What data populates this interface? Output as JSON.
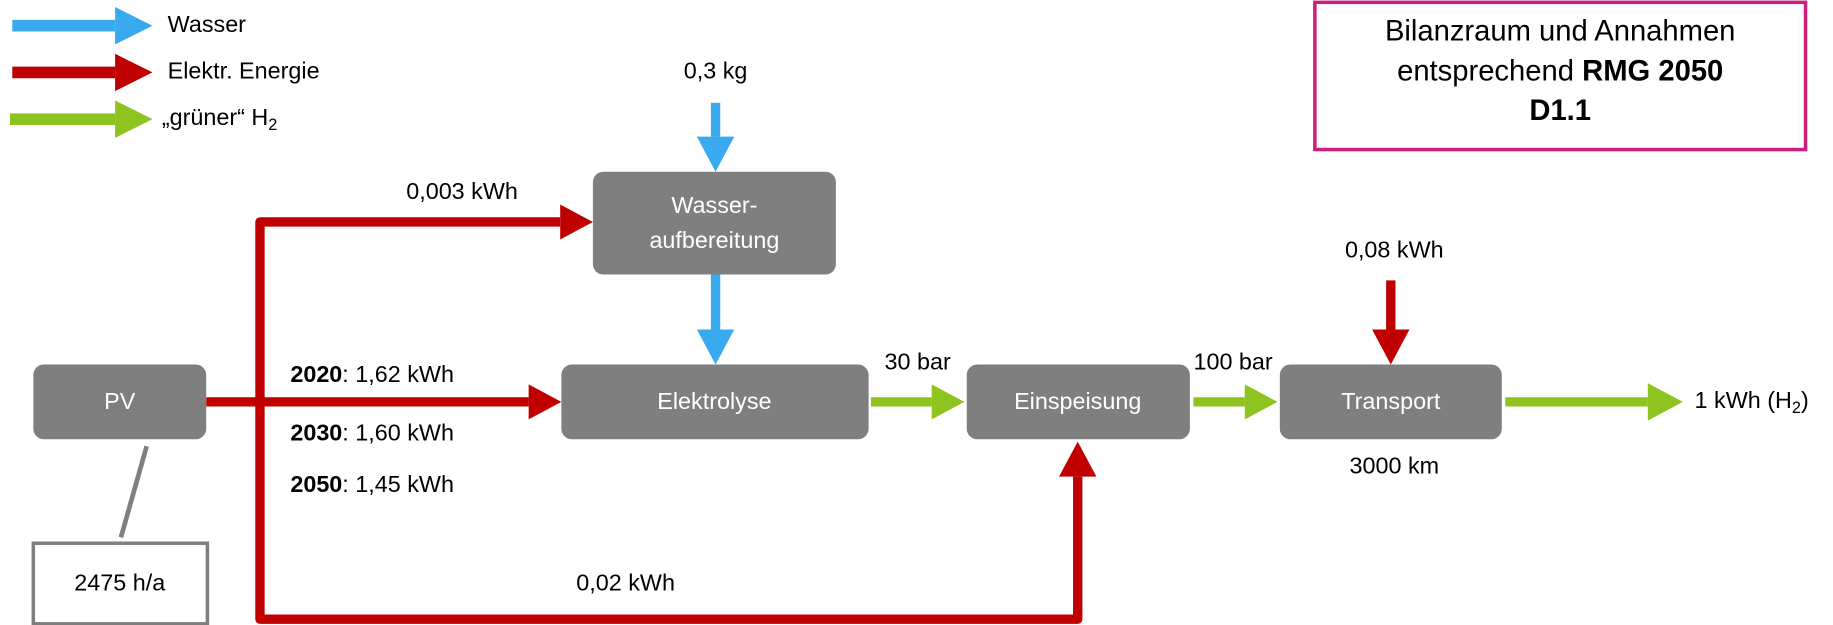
{
  "legend": [
    {
      "label": "Wasser"
    },
    {
      "label": "Elektr. Energie"
    },
    {
      "label": "„grüner“ H",
      "sub": "2"
    }
  ],
  "note": {
    "line1": "Bilanzraum und Annahmen",
    "line2": "entsprechend",
    "line2_bold": "RMG 2050",
    "line3": "D1.1"
  },
  "nodes": {
    "pv": "PV",
    "water_treatment": [
      "Wasser-",
      "aufbereitung"
    ],
    "electrolysis": "Elektrolyse",
    "feed_in": "Einspeisung",
    "transport": "Transport",
    "pv_hours": "2475 h/a"
  },
  "flows": {
    "water_input": "0,3 kg",
    "water_treatment_energy": "0,003 kWh",
    "electrolysis_energy": [
      {
        "year": "2020",
        "text": ": 1,62 kWh"
      },
      {
        "year": "2030",
        "text": ": 1,60 kWh"
      },
      {
        "year": "2050",
        "text": ": 1,45 kWh"
      }
    ],
    "feed_in_energy": "0,02 kWh",
    "electrolysis_pressure": "30 bar",
    "feed_in_pressure": "100 bar",
    "transport_energy": "0,08 kWh",
    "transport_distance": "3000 km",
    "output": {
      "text": "1 kWh (H",
      "sub": "2",
      "close": ")"
    }
  }
}
